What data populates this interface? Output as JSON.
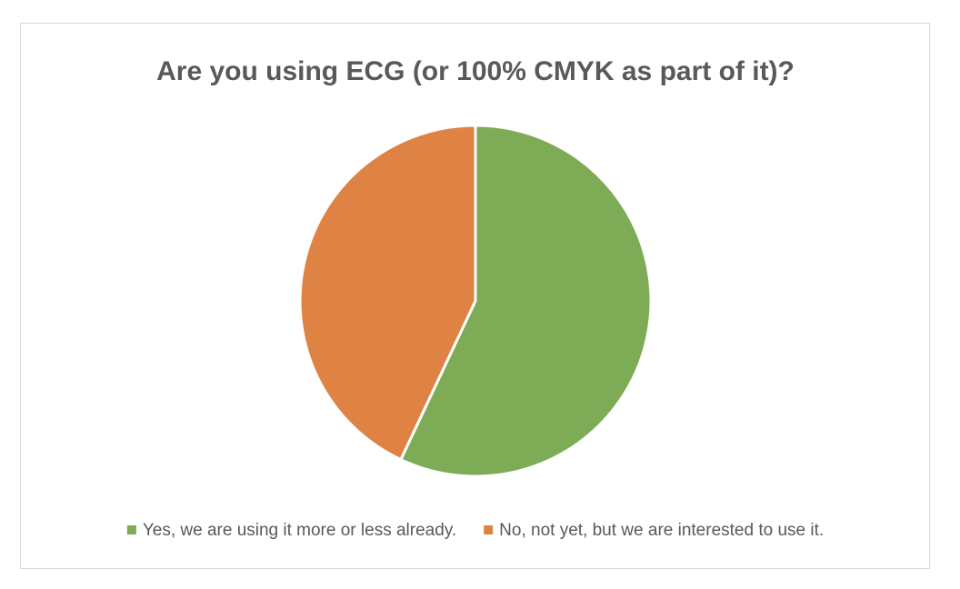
{
  "chart_data": {
    "type": "pie",
    "title": "Are you using ECG (or 100% CMYK as part of it)?",
    "categories": [
      "Yes, we are using it more or less already.",
      "No, not yet, but we are interested to use it."
    ],
    "values": [
      57,
      43
    ],
    "colors": [
      "#7eab55",
      "#df8344"
    ],
    "legend": "bottom"
  }
}
